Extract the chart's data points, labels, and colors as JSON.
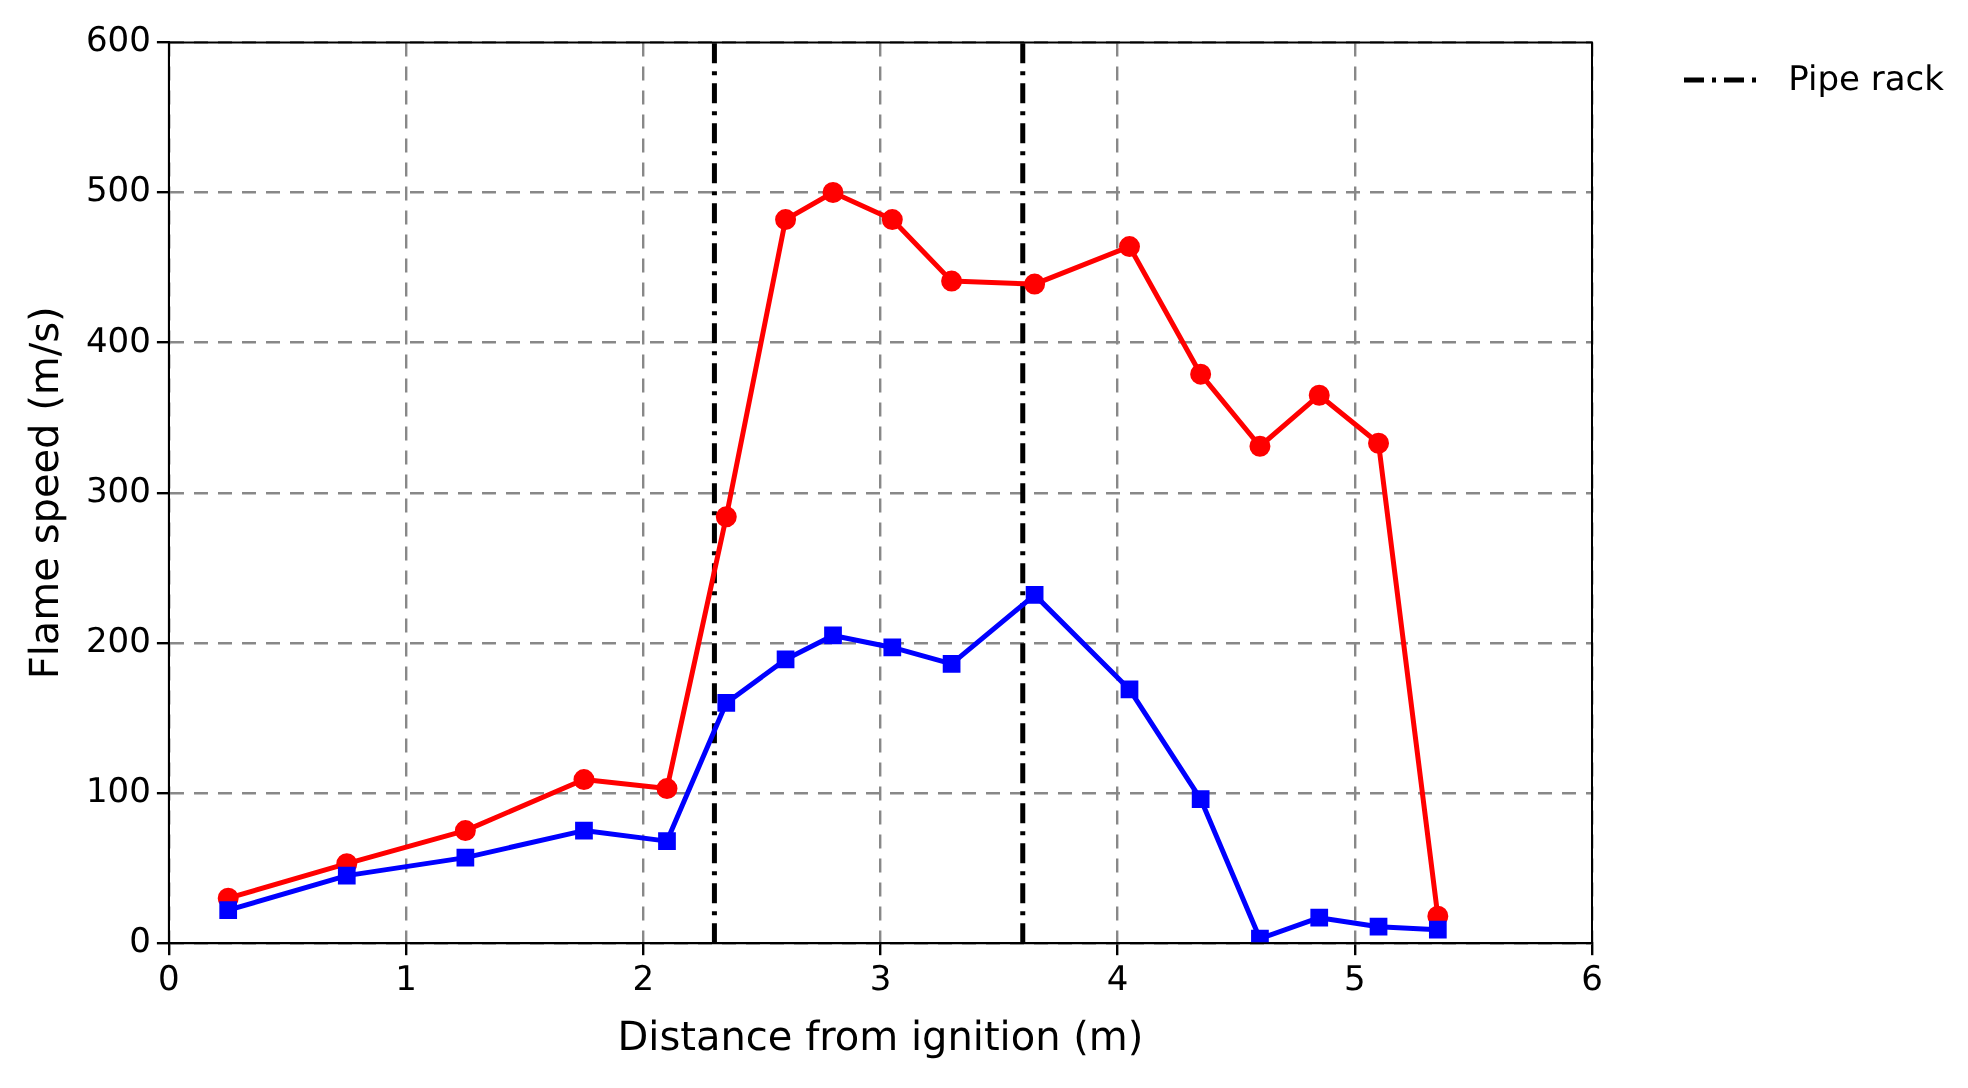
{
  "chart_data": {
    "type": "line",
    "xlabel": "Distance from ignition (m)",
    "ylabel": "Flame speed (m/s)",
    "xlim": [
      0,
      6
    ],
    "xticks": [
      0,
      1,
      2,
      3,
      4,
      5,
      6
    ],
    "ylim": [
      0,
      600
    ],
    "yticks": [
      0,
      100,
      200,
      300,
      400,
      500,
      600
    ],
    "grid": true,
    "legend": "top right",
    "series": [
      {
        "color": "#0000ff",
        "marker": "square",
        "x": [
          0.25,
          0.75,
          1.25,
          1.75,
          2.1,
          2.35,
          2.6,
          2.8,
          3.05,
          3.3,
          3.65,
          4.05,
          4.35,
          4.6,
          4.85,
          5.1,
          5.35
        ],
        "values": [
          22,
          45,
          57,
          75,
          68,
          160,
          189,
          205,
          197,
          186,
          232,
          169,
          96,
          3,
          17,
          11,
          9
        ]
      },
      {
        "color": "#ff0000",
        "marker": "circle",
        "x": [
          0.25,
          0.75,
          1.25,
          1.75,
          2.1,
          2.35,
          2.6,
          2.8,
          3.05,
          3.3,
          3.65,
          4.05,
          4.35,
          4.6,
          4.85,
          5.1,
          5.35
        ],
        "values": [
          30,
          53,
          75,
          109,
          103,
          284,
          482,
          500,
          482,
          441,
          439,
          464,
          379,
          331,
          365,
          333,
          18
        ]
      }
    ],
    "ref_lines": [
      {
        "axis": "x",
        "value": 2.3,
        "label": "Pipe rack",
        "color": "#000000",
        "line_style": "dashed"
      },
      {
        "axis": "x",
        "value": 3.6,
        "label": null,
        "color": "#000000",
        "line_style": "dashed"
      }
    ]
  }
}
